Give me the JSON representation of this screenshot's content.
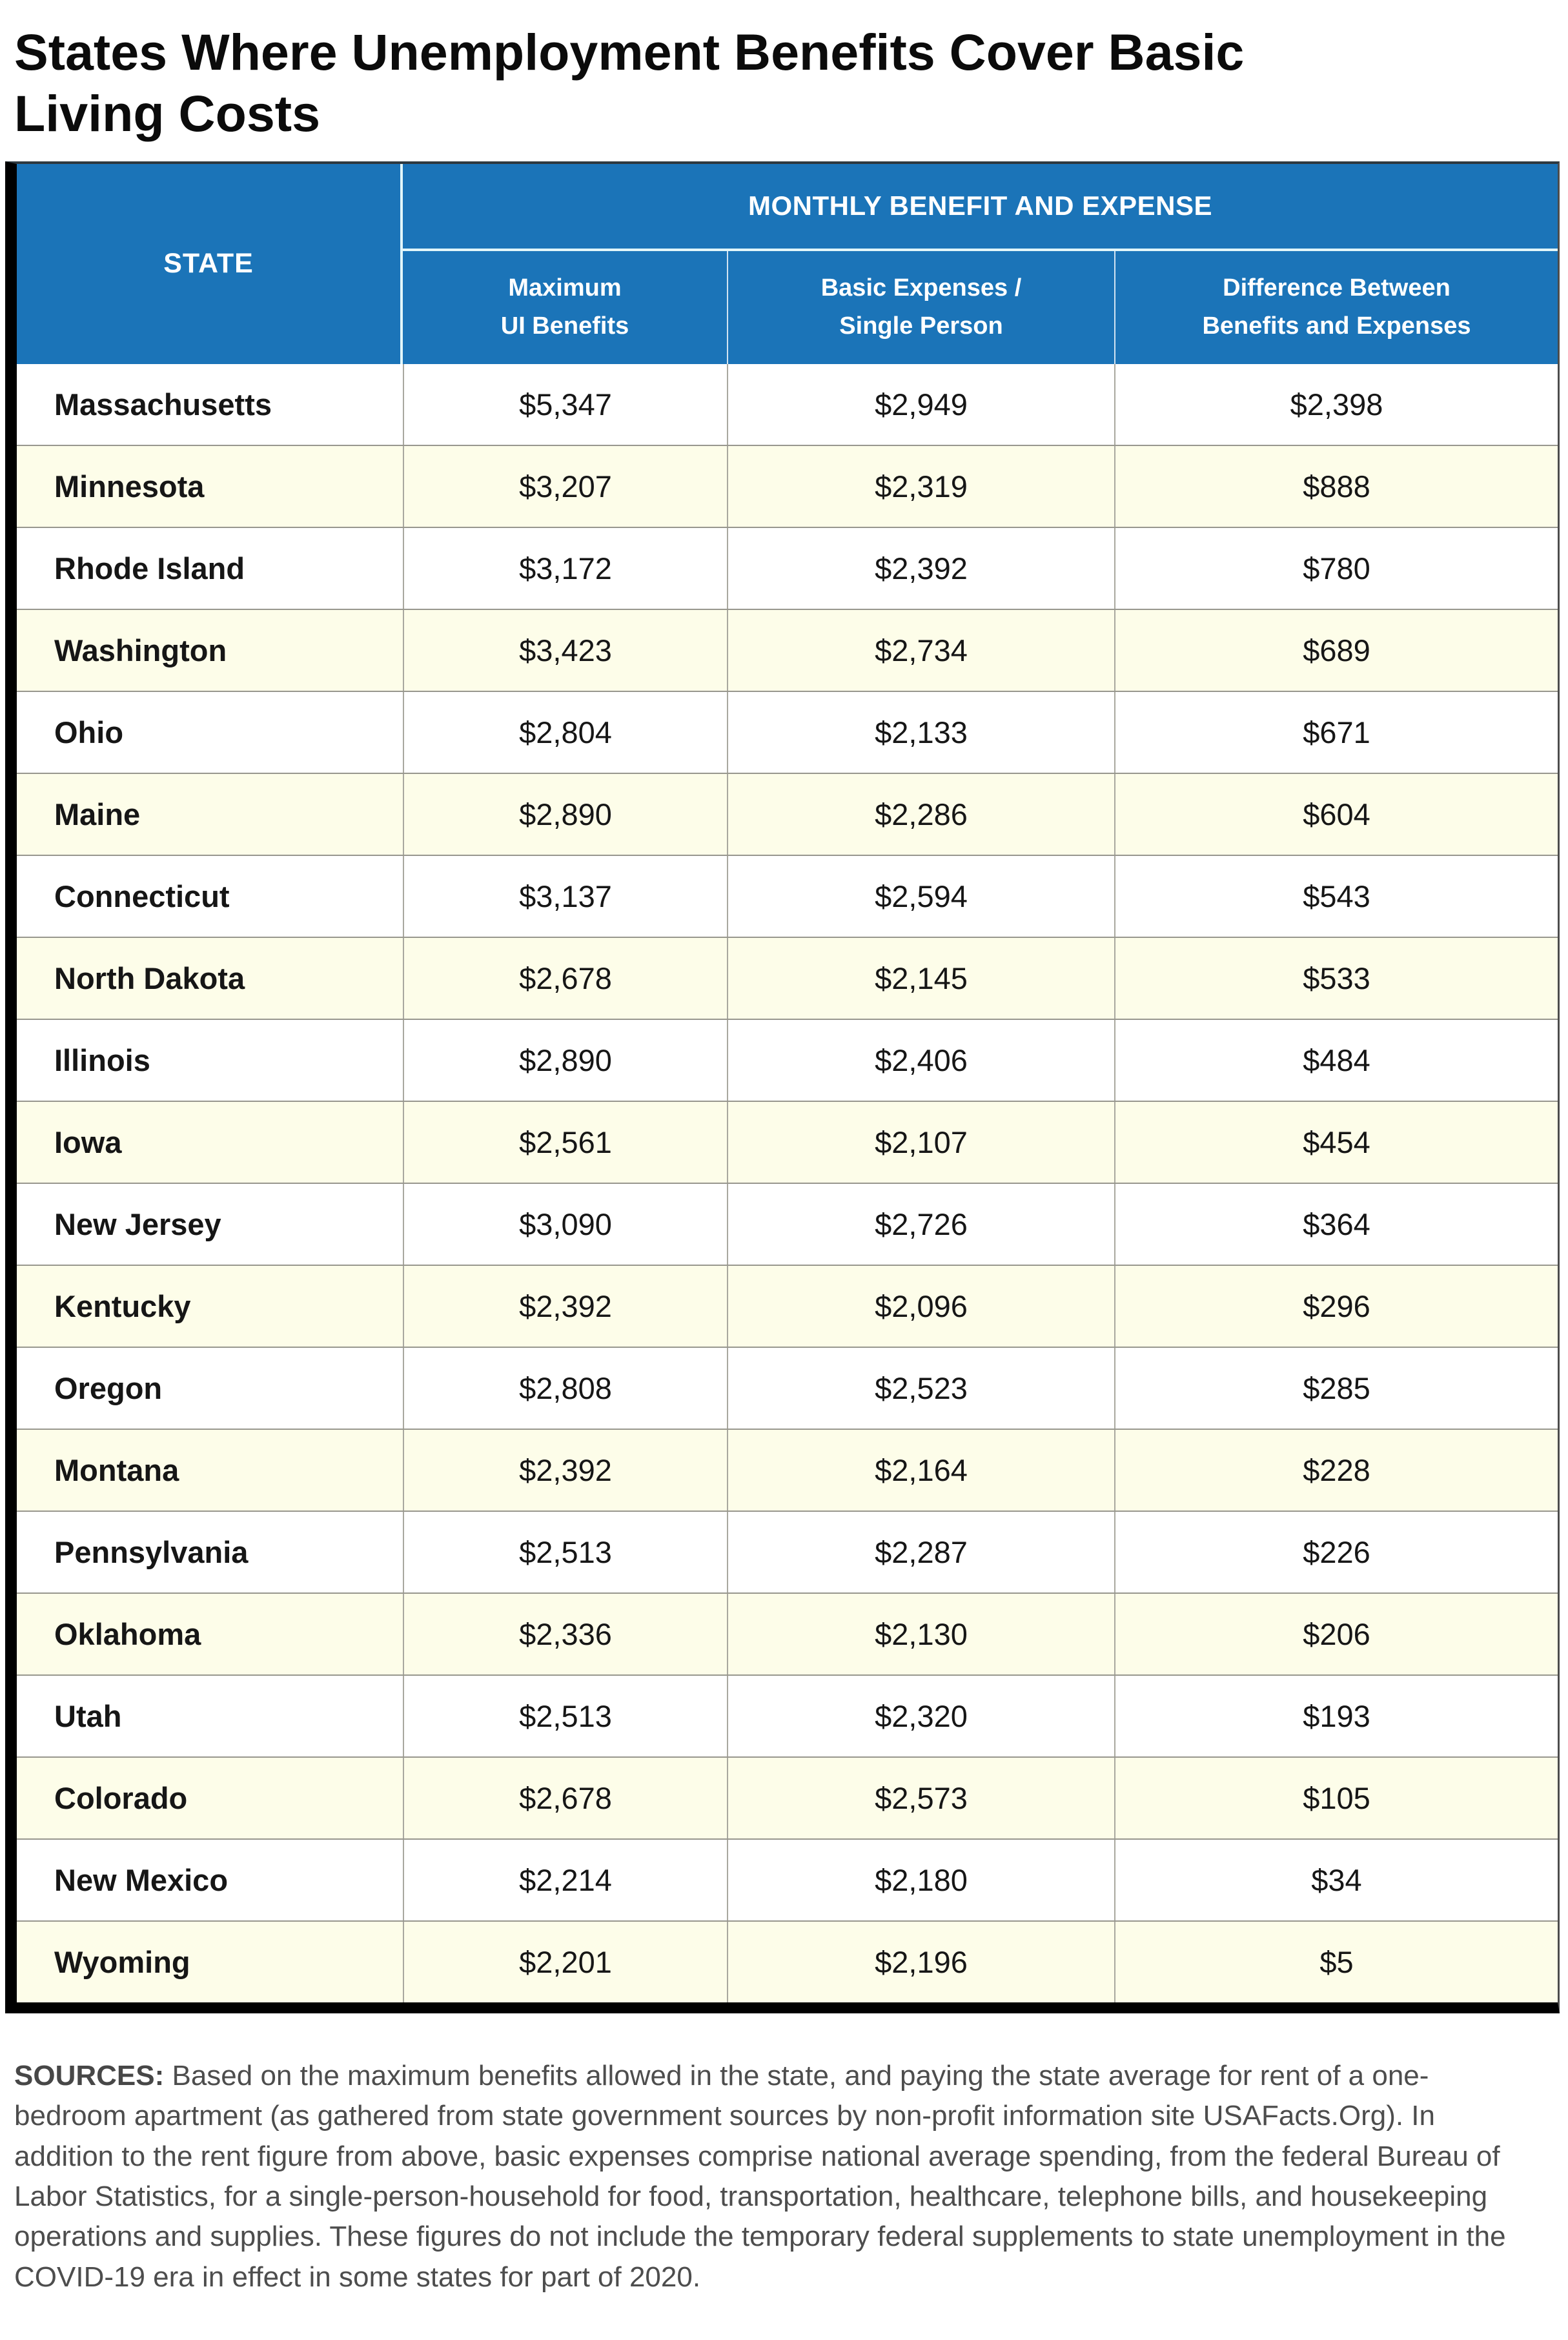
{
  "title": "States Where Unemployment Benefits Cover Basic Living Costs",
  "table": {
    "state_header": "STATE",
    "group_header": "MONTHLY BENEFIT AND EXPENSE",
    "col_headers": [
      {
        "line1": "Maximum",
        "line2": "UI Benefits"
      },
      {
        "line1": "Basic Expenses /",
        "line2": "Single Person"
      },
      {
        "line1": "Difference Between",
        "line2": "Benefits and Expenses"
      }
    ],
    "rows": [
      {
        "state": "Massachusetts",
        "benefits": "$5,347",
        "expenses": "$2,949",
        "difference": "$2,398"
      },
      {
        "state": "Minnesota",
        "benefits": "$3,207",
        "expenses": "$2,319",
        "difference": "$888"
      },
      {
        "state": "Rhode Island",
        "benefits": "$3,172",
        "expenses": "$2,392",
        "difference": "$780"
      },
      {
        "state": "Washington",
        "benefits": "$3,423",
        "expenses": "$2,734",
        "difference": "$689"
      },
      {
        "state": "Ohio",
        "benefits": "$2,804",
        "expenses": "$2,133",
        "difference": "$671"
      },
      {
        "state": "Maine",
        "benefits": "$2,890",
        "expenses": "$2,286",
        "difference": "$604"
      },
      {
        "state": "Connecticut",
        "benefits": "$3,137",
        "expenses": "$2,594",
        "difference": "$543"
      },
      {
        "state": "North Dakota",
        "benefits": "$2,678",
        "expenses": "$2,145",
        "difference": "$533"
      },
      {
        "state": "Illinois",
        "benefits": "$2,890",
        "expenses": "$2,406",
        "difference": "$484"
      },
      {
        "state": "Iowa",
        "benefits": "$2,561",
        "expenses": "$2,107",
        "difference": "$454"
      },
      {
        "state": "New Jersey",
        "benefits": "$3,090",
        "expenses": "$2,726",
        "difference": "$364"
      },
      {
        "state": "Kentucky",
        "benefits": "$2,392",
        "expenses": "$2,096",
        "difference": "$296"
      },
      {
        "state": "Oregon",
        "benefits": "$2,808",
        "expenses": "$2,523",
        "difference": "$285"
      },
      {
        "state": "Montana",
        "benefits": "$2,392",
        "expenses": "$2,164",
        "difference": "$228"
      },
      {
        "state": "Pennsylvania",
        "benefits": "$2,513",
        "expenses": "$2,287",
        "difference": "$226"
      },
      {
        "state": "Oklahoma",
        "benefits": "$2,336",
        "expenses": "$2,130",
        "difference": "$206"
      },
      {
        "state": "Utah",
        "benefits": "$2,513",
        "expenses": "$2,320",
        "difference": "$193"
      },
      {
        "state": "Colorado",
        "benefits": "$2,678",
        "expenses": "$2,573",
        "difference": "$105"
      },
      {
        "state": "New Mexico",
        "benefits": "$2,214",
        "expenses": "$2,180",
        "difference": "$34"
      },
      {
        "state": "Wyoming",
        "benefits": "$2,201",
        "expenses": "$2,196",
        "difference": "$5"
      }
    ]
  },
  "footer": {
    "sources_label": "SOURCES:",
    "sources_text": " Based on the maximum benefits allowed in the state, and paying the state average for rent of a one-bedroom apartment (as gathered from state government sources by non-profit information site USAFacts.Org). In addition to the rent figure from above, basic expenses comprise national average spending, from the federal Bureau of Labor Statistics, for a single-person-household for food, transportation, healthcare, telephone bills, and housekeeping operations and supplies. These figures do not include the temporary federal supplements to state unemployment in the COVID-19 era in effect in some states for part of 2020."
  },
  "colors": {
    "header_blue": "#1b74b8",
    "row_stripe_yellow": "#fdfde9",
    "border_black": "#000000",
    "divider_gray": "#98978e",
    "source_text_gray": "#4d4d4d"
  },
  "chart_data": {
    "type": "table",
    "title": "States Where Unemployment Benefits Cover Basic Living Costs",
    "columns": [
      "State",
      "Maximum UI Benefits",
      "Basic Expenses / Single Person",
      "Difference Between Benefits and Expenses"
    ],
    "rows": [
      [
        "Massachusetts",
        5347,
        2949,
        2398
      ],
      [
        "Minnesota",
        3207,
        2319,
        888
      ],
      [
        "Rhode Island",
        3172,
        2392,
        780
      ],
      [
        "Washington",
        3423,
        2734,
        689
      ],
      [
        "Ohio",
        2804,
        2133,
        671
      ],
      [
        "Maine",
        2890,
        2286,
        604
      ],
      [
        "Connecticut",
        3137,
        2594,
        543
      ],
      [
        "North Dakota",
        2678,
        2145,
        533
      ],
      [
        "Illinois",
        2890,
        2406,
        484
      ],
      [
        "Iowa",
        2561,
        2107,
        454
      ],
      [
        "New Jersey",
        3090,
        2726,
        364
      ],
      [
        "Kentucky",
        2392,
        2096,
        296
      ],
      [
        "Oregon",
        2808,
        2523,
        285
      ],
      [
        "Montana",
        2392,
        2164,
        228
      ],
      [
        "Pennsylvania",
        2513,
        2287,
        226
      ],
      [
        "Oklahoma",
        2336,
        2130,
        206
      ],
      [
        "Utah",
        2513,
        2320,
        193
      ],
      [
        "Colorado",
        2678,
        2573,
        105
      ],
      [
        "New Mexico",
        2214,
        2180,
        34
      ],
      [
        "Wyoming",
        2201,
        2196,
        5
      ]
    ]
  }
}
